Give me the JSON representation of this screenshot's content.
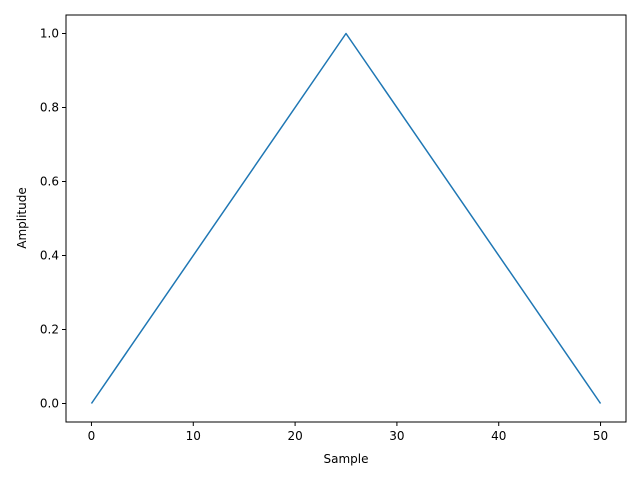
{
  "chart_data": {
    "type": "line",
    "title": "",
    "xlabel": "Sample",
    "ylabel": "Amplitude",
    "xlim": [
      -2.5,
      52.5
    ],
    "ylim": [
      -0.05,
      1.05
    ],
    "xticks": [
      0,
      10,
      20,
      30,
      40,
      50
    ],
    "xtick_labels": [
      "0",
      "10",
      "20",
      "30",
      "40",
      "50"
    ],
    "yticks": [
      0.0,
      0.2,
      0.4,
      0.6,
      0.8,
      1.0
    ],
    "ytick_labels": [
      "0.0",
      "0.2",
      "0.4",
      "0.6",
      "0.8",
      "1.0"
    ],
    "grid": false,
    "legend": "none",
    "series": [
      {
        "color": "#1f77b4",
        "x": [
          0,
          25,
          50
        ],
        "y": [
          0.0,
          1.0,
          0.0
        ]
      }
    ]
  }
}
